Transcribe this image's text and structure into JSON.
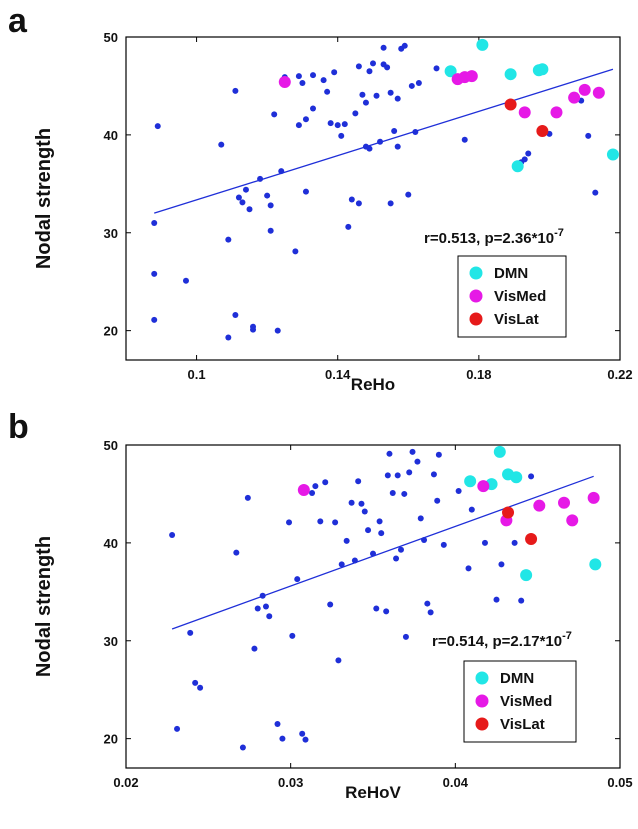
{
  "chart_data": [
    {
      "panel_label": "a",
      "type": "scatter",
      "xlabel": "ReHo",
      "ylabel": "Nodal strength",
      "xlim": [
        0.08,
        0.22
      ],
      "ylim": [
        17,
        50
      ],
      "xticks": [
        "0.1",
        "0.14",
        "0.18",
        "0.22"
      ],
      "xtick_values": [
        0.1,
        0.14,
        0.18,
        0.22
      ],
      "yticks": [
        "20",
        "30",
        "40",
        "50"
      ],
      "ytick_values": [
        20,
        30,
        40,
        50
      ],
      "annotation": "r=0.513, p=2.36*10",
      "annotation_exp": "-7",
      "fit_line": {
        "x": [
          0.088,
          0.218
        ],
        "y": [
          32.0,
          46.7
        ]
      },
      "legend_position": "bottom-right",
      "series": [
        {
          "color": "#1f2fd8",
          "x": [
            0.088,
            0.088,
            0.088,
            0.089,
            0.097,
            0.107,
            0.109,
            0.109,
            0.111,
            0.111,
            0.112,
            0.113,
            0.114,
            0.115,
            0.116,
            0.116,
            0.118,
            0.12,
            0.121,
            0.121,
            0.122,
            0.123,
            0.124,
            0.125,
            0.128,
            0.129,
            0.129,
            0.13,
            0.131,
            0.131,
            0.133,
            0.133,
            0.136,
            0.137,
            0.138,
            0.139,
            0.14,
            0.141,
            0.142,
            0.143,
            0.144,
            0.145,
            0.146,
            0.146,
            0.147,
            0.148,
            0.148,
            0.149,
            0.149,
            0.15,
            0.151,
            0.152,
            0.153,
            0.153,
            0.154,
            0.155,
            0.155,
            0.156,
            0.157,
            0.157,
            0.158,
            0.159,
            0.16,
            0.161,
            0.162,
            0.163,
            0.168,
            0.176,
            0.192,
            0.193,
            0.194,
            0.2,
            0.209,
            0.211,
            0.213
          ],
          "y": [
            31.0,
            25.8,
            21.1,
            40.9,
            25.1,
            39.0,
            29.3,
            19.3,
            21.6,
            44.5,
            33.6,
            33.1,
            34.4,
            32.4,
            20.1,
            20.4,
            35.5,
            33.8,
            32.8,
            30.2,
            42.1,
            20.0,
            36.3,
            45.9,
            28.1,
            41.0,
            46.0,
            45.3,
            34.2,
            41.6,
            46.1,
            42.7,
            45.6,
            44.4,
            41.2,
            46.4,
            41.0,
            39.9,
            41.1,
            30.6,
            33.4,
            42.2,
            33.0,
            47.0,
            44.1,
            38.8,
            43.3,
            46.5,
            38.6,
            47.3,
            44.0,
            39.3,
            48.9,
            47.2,
            46.9,
            33.0,
            44.3,
            40.4,
            43.7,
            38.8,
            48.8,
            49.1,
            33.9,
            45.0,
            40.3,
            45.3,
            46.8,
            39.5,
            37.2,
            37.5,
            38.1,
            40.1,
            43.5,
            39.9,
            34.1
          ]
        },
        {
          "name": "DMN",
          "color": "#21e6e6",
          "x": [
            0.172,
            0.181,
            0.189,
            0.191,
            0.197,
            0.198,
            0.218
          ],
          "y": [
            46.5,
            49.2,
            46.2,
            36.8,
            46.6,
            46.7,
            38.0
          ]
        },
        {
          "name": "VisMed",
          "color": "#e619e6",
          "x": [
            0.125,
            0.174,
            0.176,
            0.178,
            0.193,
            0.202,
            0.207,
            0.21,
            0.214
          ],
          "y": [
            45.4,
            45.7,
            45.9,
            46.0,
            42.3,
            42.3,
            43.8,
            44.6,
            44.3
          ]
        },
        {
          "name": "VisLat",
          "color": "#e61a1a",
          "x": [
            0.189,
            0.198
          ],
          "y": [
            43.1,
            40.4
          ]
        }
      ]
    },
    {
      "panel_label": "b",
      "type": "scatter",
      "xlabel": "ReHoV",
      "ylabel": "Nodal strength",
      "xlim": [
        0.02,
        0.05
      ],
      "ylim": [
        17,
        50
      ],
      "xticks": [
        "0.02",
        "0.03",
        "0.04",
        "0.05"
      ],
      "xtick_values": [
        0.02,
        0.03,
        0.04,
        0.05
      ],
      "yticks": [
        "20",
        "30",
        "40",
        "50"
      ],
      "ytick_values": [
        20,
        30,
        40,
        50
      ],
      "annotation": "r=0.514, p=2.17*10",
      "annotation_exp": "-7",
      "fit_line": {
        "x": [
          0.0228,
          0.0484
        ],
        "y": [
          31.2,
          46.8
        ]
      },
      "legend_position": "bottom-right",
      "series": [
        {
          "color": "#1f2fd8",
          "x": [
            0.0228,
            0.0231,
            0.0239,
            0.0242,
            0.0245,
            0.0267,
            0.0271,
            0.0274,
            0.0278,
            0.028,
            0.0283,
            0.0285,
            0.0287,
            0.0292,
            0.0295,
            0.0299,
            0.0301,
            0.0304,
            0.0307,
            0.0309,
            0.0313,
            0.0315,
            0.0318,
            0.0321,
            0.0324,
            0.0327,
            0.0329,
            0.0331,
            0.0334,
            0.0337,
            0.0339,
            0.0341,
            0.0343,
            0.0345,
            0.0347,
            0.035,
            0.0352,
            0.0354,
            0.0355,
            0.0358,
            0.0359,
            0.036,
            0.0362,
            0.0364,
            0.0365,
            0.0367,
            0.0369,
            0.037,
            0.0372,
            0.0374,
            0.0377,
            0.0379,
            0.0381,
            0.0383,
            0.0385,
            0.0387,
            0.0389,
            0.039,
            0.0393,
            0.0402,
            0.0408,
            0.041,
            0.0418,
            0.0425,
            0.0428,
            0.0436,
            0.044,
            0.0446
          ],
          "y": [
            40.8,
            21.0,
            30.8,
            25.7,
            25.2,
            39.0,
            19.1,
            44.6,
            29.2,
            33.3,
            34.6,
            33.5,
            32.5,
            21.5,
            20.0,
            42.1,
            30.5,
            36.3,
            20.5,
            19.9,
            45.1,
            45.8,
            42.2,
            46.2,
            33.7,
            42.1,
            28.0,
            37.8,
            40.2,
            44.1,
            38.2,
            46.3,
            44.0,
            43.2,
            41.3,
            38.9,
            33.3,
            42.2,
            41.0,
            33.0,
            46.9,
            49.1,
            45.1,
            38.4,
            46.9,
            39.3,
            45.0,
            30.4,
            47.2,
            49.3,
            48.3,
            42.5,
            40.3,
            33.8,
            32.9,
            47.0,
            44.3,
            49.0,
            39.8,
            45.3,
            37.4,
            43.4,
            40.0,
            34.2,
            37.8,
            40.0,
            34.1,
            46.8
          ]
        },
        {
          "name": "DMN",
          "color": "#21e6e6",
          "x": [
            0.0409,
            0.0422,
            0.0427,
            0.0432,
            0.0437,
            0.0443,
            0.0485
          ],
          "y": [
            46.3,
            46.0,
            49.3,
            47.0,
            46.7,
            36.7,
            37.8
          ]
        },
        {
          "name": "VisMed",
          "color": "#e619e6",
          "x": [
            0.0308,
            0.0417,
            0.0431,
            0.0451,
            0.0466,
            0.0471,
            0.0484
          ],
          "y": [
            45.4,
            45.8,
            42.3,
            43.8,
            44.1,
            42.3,
            44.6
          ]
        },
        {
          "name": "VisLat",
          "color": "#e61a1a",
          "x": [
            0.0432,
            0.0446
          ],
          "y": [
            43.1,
            40.4
          ]
        }
      ]
    }
  ]
}
